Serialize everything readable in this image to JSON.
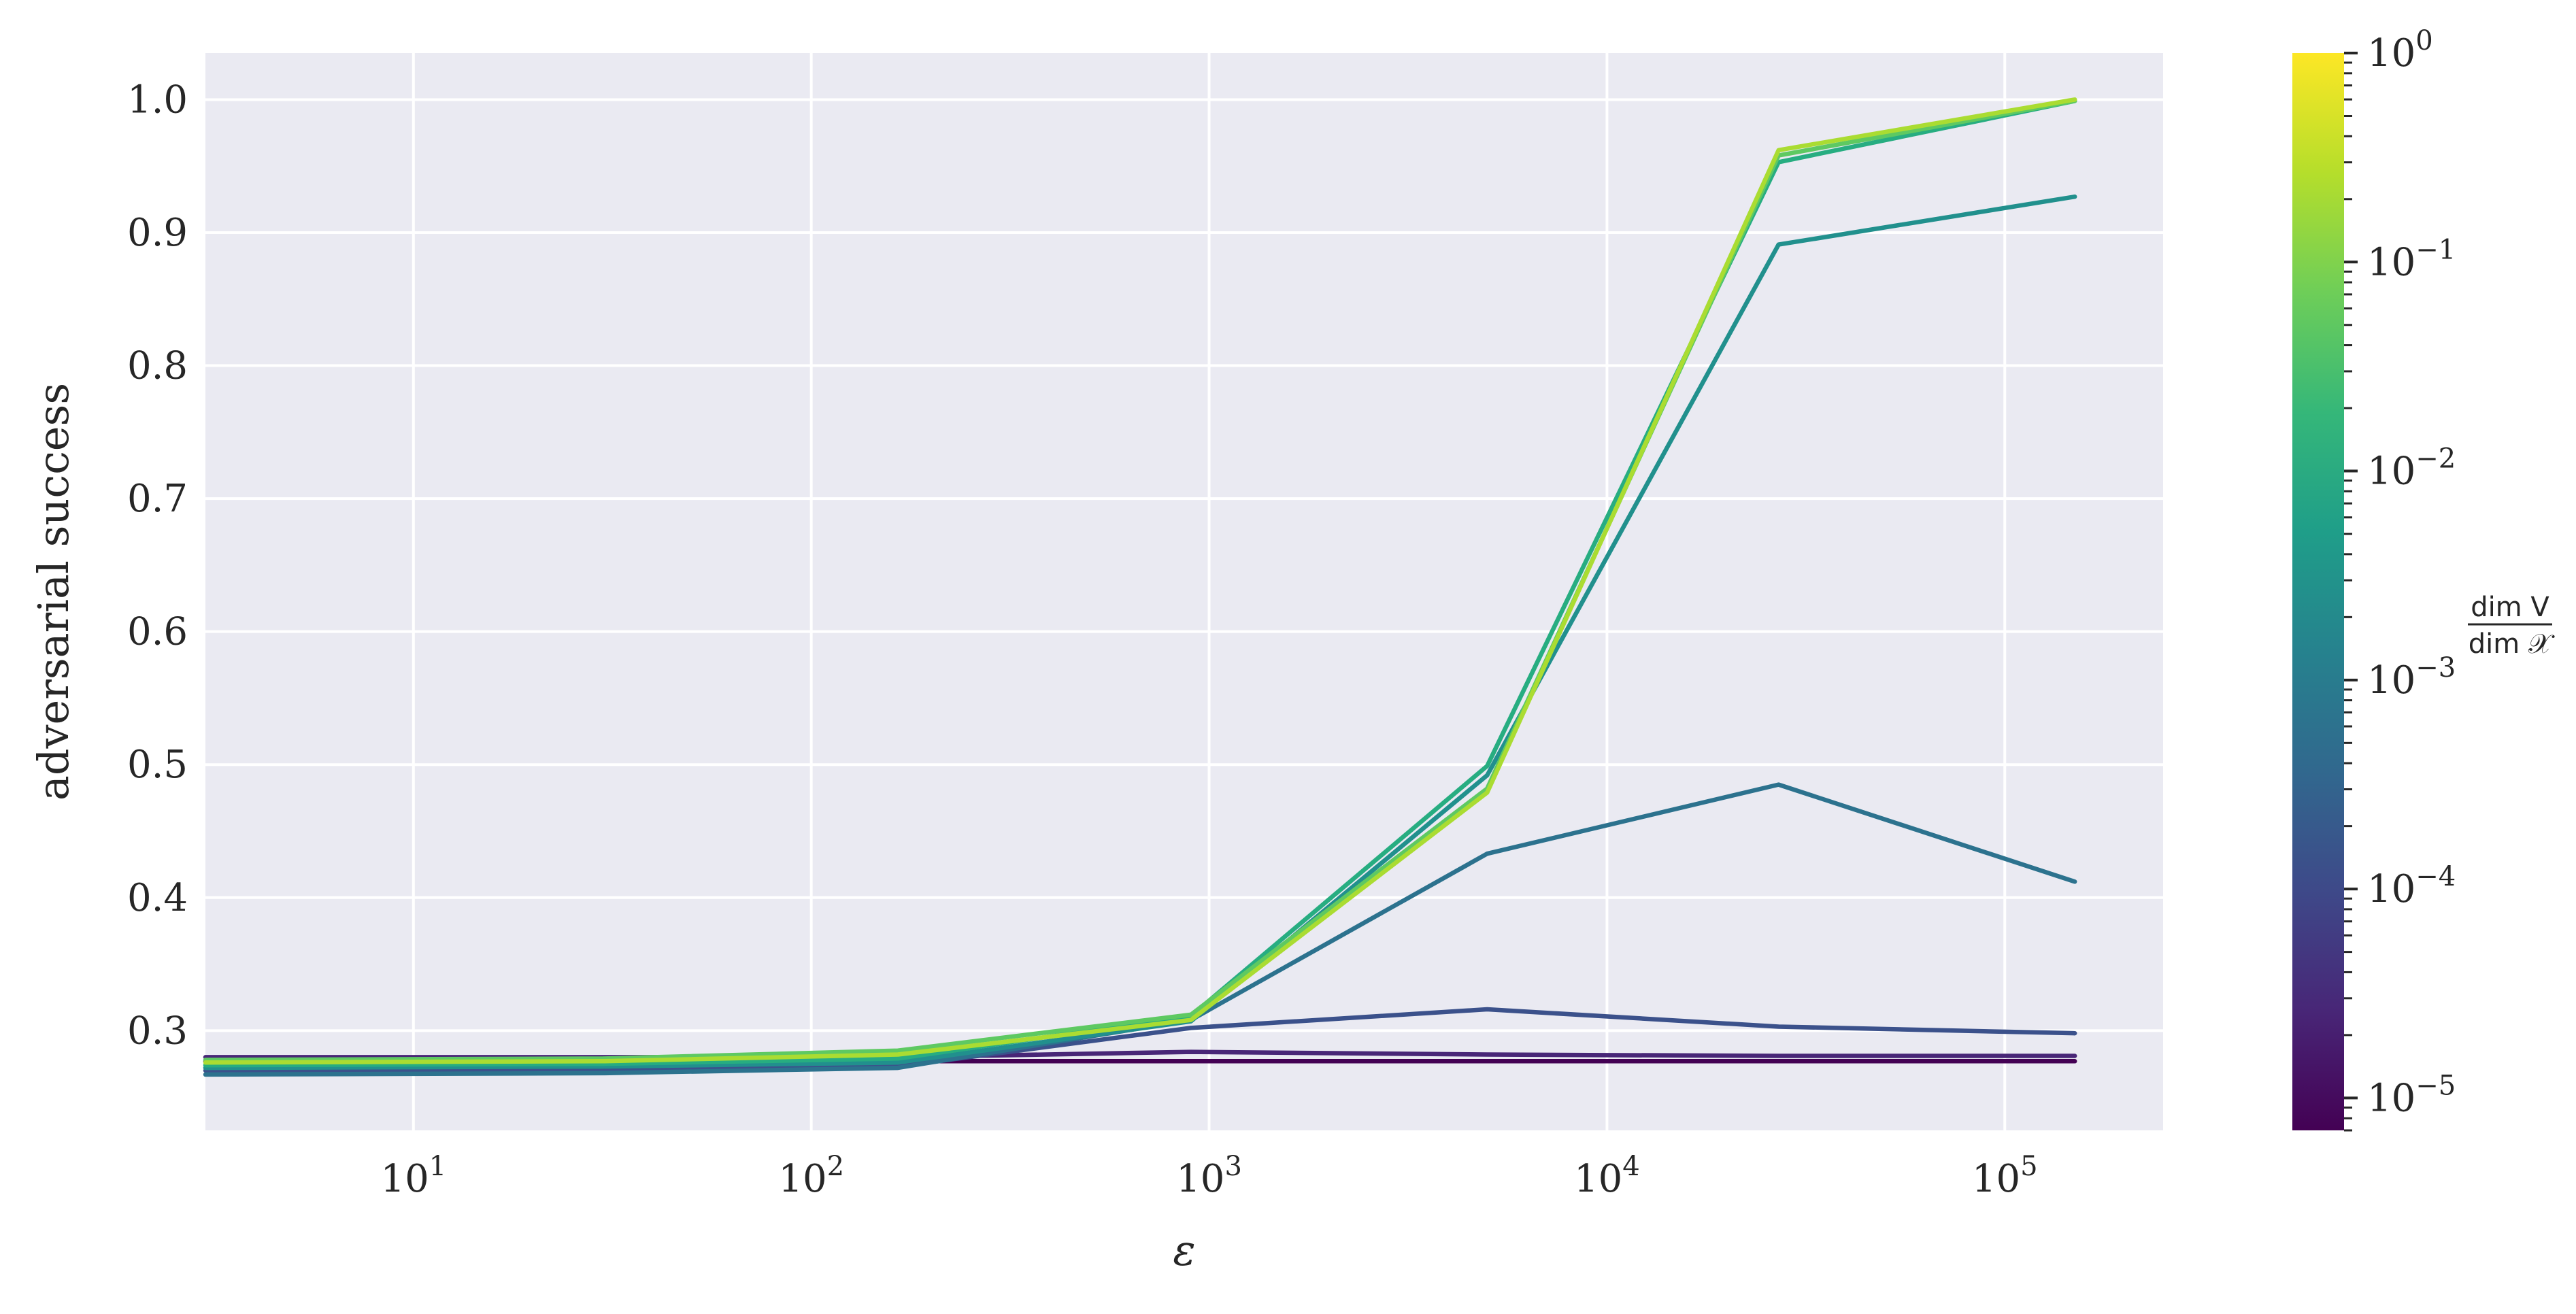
{
  "chart_data": {
    "type": "line",
    "xlabel": "ε",
    "ylabel": "adversarial success",
    "xscale": "log",
    "xlim": [
      3,
      250000
    ],
    "ylim": [
      0.225,
      1.035
    ],
    "grid": true,
    "x_ticks": [
      {
        "value": 10,
        "base": "10",
        "exp": "1"
      },
      {
        "value": 100,
        "base": "10",
        "exp": "2"
      },
      {
        "value": 1000,
        "base": "10",
        "exp": "3"
      },
      {
        "value": 10000,
        "base": "10",
        "exp": "4"
      },
      {
        "value": 100000,
        "base": "10",
        "exp": "5"
      }
    ],
    "y_ticks": [
      {
        "value": 0.3,
        "label": "0.3"
      },
      {
        "value": 0.4,
        "label": "0.4"
      },
      {
        "value": 0.5,
        "label": "0.5"
      },
      {
        "value": 0.6,
        "label": "0.6"
      },
      {
        "value": 0.7,
        "label": "0.7"
      },
      {
        "value": 0.8,
        "label": "0.8"
      },
      {
        "value": 0.9,
        "label": "0.9"
      },
      {
        "value": 1.0,
        "label": "1.0"
      }
    ],
    "x": [
      3,
      30,
      165,
      900,
      5000,
      27000,
      150000
    ],
    "series": [
      {
        "color": "#440154",
        "values": [
          0.277,
          0.277,
          0.277,
          0.277,
          0.277,
          0.277,
          0.277
        ]
      },
      {
        "color": "#482677",
        "values": [
          0.28,
          0.28,
          0.28,
          0.284,
          0.282,
          0.281,
          0.281
        ]
      },
      {
        "color": "#3b518b",
        "values": [
          0.27,
          0.271,
          0.273,
          0.302,
          0.316,
          0.303,
          0.298
        ]
      },
      {
        "color": "#2c728e",
        "values": [
          0.267,
          0.268,
          0.272,
          0.308,
          0.433,
          0.485,
          0.412
        ]
      },
      {
        "color": "#21908d",
        "values": [
          0.272,
          0.273,
          0.276,
          0.307,
          0.492,
          0.891,
          0.927
        ]
      },
      {
        "color": "#27ad81",
        "values": [
          0.274,
          0.275,
          0.279,
          0.311,
          0.499,
          0.953,
          0.999
        ]
      },
      {
        "color": "#5ec962",
        "values": [
          0.278,
          0.279,
          0.285,
          0.312,
          0.482,
          0.958,
          0.999
        ]
      },
      {
        "color": "#aadc32",
        "values": [
          0.276,
          0.277,
          0.282,
          0.308,
          0.479,
          0.962,
          1.0
        ]
      }
    ],
    "colorbar": {
      "scale": "log",
      "range": [
        7e-06,
        1
      ],
      "colors": [
        "#440154",
        "#482677",
        "#3e4989",
        "#31688e",
        "#26828e",
        "#1f9e89",
        "#35b779",
        "#6ece58",
        "#b5de2b",
        "#fde725"
      ],
      "ticks": [
        {
          "value": 1e-05,
          "base": "10",
          "exp": "−5"
        },
        {
          "value": 0.0001,
          "base": "10",
          "exp": "−4"
        },
        {
          "value": 0.001,
          "base": "10",
          "exp": "−3"
        },
        {
          "value": 0.01,
          "base": "10",
          "exp": "−2"
        },
        {
          "value": 0.1,
          "base": "10",
          "exp": "−1"
        },
        {
          "value": 1,
          "base": "10",
          "exp": "0"
        }
      ],
      "label_num": "dim V",
      "label_den": "dim 𝒳"
    }
  }
}
